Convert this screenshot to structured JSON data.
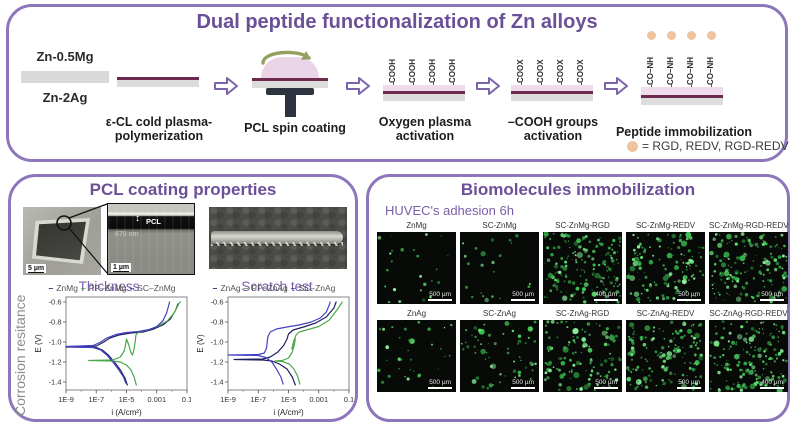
{
  "colors": {
    "purple_accent": "#6b5098",
    "panel_border": "#8d76ba",
    "maroon_layer": "#6e2a4e",
    "pink_layer": "#eedcec",
    "peach_peptide": "#efc39e",
    "gray_substrate": "#d9d9d9",
    "spin_arrow_green": "#93a05f",
    "fluorescence_green": "#4ddb64"
  },
  "top_panel": {
    "title": "Dual peptide functionalization of Zn alloys",
    "sample": {
      "top_label": "Zn-0.5Mg",
      "bottom_label": "Zn-2Ag"
    },
    "step_pp": {
      "caption_line1": "ε-CL cold plasma-",
      "caption_line2": "polymerization"
    },
    "step_spin": {
      "caption": "PCL spin coating"
    },
    "step_oxygen": {
      "caption_line1": "Oxygen plasma",
      "caption_line2": "activation",
      "group": "COOH"
    },
    "step_coox": {
      "caption_line1": "–COOH groups",
      "caption_line2": "activation",
      "group": "COOX"
    },
    "step_peptide": {
      "caption": "Peptide immobilization",
      "group": "CO–NH",
      "legend": "= RGD, REDV, RGD-REDV"
    }
  },
  "pcl_panel": {
    "title": "PCL coating properties",
    "fib_scalebar": "5 µm",
    "inset": {
      "layer_label": "PCL",
      "thickness": "670 nm",
      "scalebar": "1 µm",
      "arrow": "↕"
    },
    "caption_thickness": "Thickness",
    "caption_scratch": "Scratch test",
    "side_label": "Corrosion resitance"
  },
  "chart_data": [
    {
      "type": "line",
      "title": "",
      "xlabel": "i (A/cm²)",
      "ylabel": "E (V)",
      "x_scale": "log",
      "xlim_log": [
        -9,
        -1
      ],
      "ylim": [
        -1.48,
        -0.55
      ],
      "grid": false,
      "legend_position": "top",
      "x_ticks": {
        "values": [
          -9,
          -7,
          -5,
          -3,
          -1
        ],
        "labels": [
          "1E-9",
          "1E-7",
          "1E-5",
          "0.001",
          "0.1"
        ]
      },
      "y_ticks": {
        "values": [
          -0.6,
          -0.8,
          -1.0,
          -1.2,
          -1.4
        ],
        "labels": [
          "-0.6",
          "-0.8",
          "-1.0",
          "-1.2",
          "-1.4"
        ]
      },
      "series": [
        {
          "name": "ZnMg",
          "color": "#1f1f5e",
          "points": [
            [
              -4.95,
              -1.43
            ],
            [
              -5.1,
              -1.36
            ],
            [
              -5.4,
              -1.28
            ],
            [
              -5.8,
              -1.2
            ],
            [
              -6.2,
              -1.13
            ],
            [
              -6.6,
              -1.08
            ],
            [
              -7.0,
              -1.055
            ],
            [
              -9,
              -1.05
            ],
            [
              -7.0,
              -1.04
            ],
            [
              -6.5,
              -1.0
            ],
            [
              -6.1,
              -0.96
            ],
            [
              -5.5,
              -0.93
            ],
            [
              -4.7,
              -0.91
            ],
            [
              -3.9,
              -0.9
            ],
            [
              -3.2,
              -0.87
            ],
            [
              -2.6,
              -0.83
            ],
            [
              -2.1,
              -0.77
            ],
            [
              -1.75,
              -0.68
            ],
            [
              -1.6,
              -0.62
            ]
          ]
        },
        {
          "name": "PP–ZnMg",
          "color": "#4aa84a",
          "points": [
            [
              -4.35,
              -1.43
            ],
            [
              -4.5,
              -1.35
            ],
            [
              -4.7,
              -1.28
            ],
            [
              -5.0,
              -1.23
            ],
            [
              -5.4,
              -1.2
            ],
            [
              -5.9,
              -1.19
            ],
            [
              -7.5,
              -1.185
            ],
            [
              -5.9,
              -1.18
            ],
            [
              -5.4,
              -1.15
            ],
            [
              -5.15,
              -1.09
            ],
            [
              -5.05,
              -1.02
            ],
            [
              -5.0,
              -0.97
            ],
            [
              -4.85,
              -1.03
            ],
            [
              -4.72,
              -1.1
            ],
            [
              -4.6,
              -1.13
            ],
            [
              -4.5,
              -1.07
            ],
            [
              -4.42,
              -0.99
            ],
            [
              -4.38,
              -0.93
            ],
            [
              -4.2,
              -0.9
            ],
            [
              -3.6,
              -0.88
            ],
            [
              -2.9,
              -0.84
            ],
            [
              -2.3,
              -0.79
            ],
            [
              -1.85,
              -0.71
            ],
            [
              -1.55,
              -0.62
            ],
            [
              -1.45,
              -0.6
            ]
          ]
        },
        {
          "name": "SC–ZnMg",
          "color": "#4340c4",
          "points": [
            [
              -5.05,
              -1.41
            ],
            [
              -5.2,
              -1.35
            ],
            [
              -5.5,
              -1.28
            ],
            [
              -5.9,
              -1.2
            ],
            [
              -6.3,
              -1.13
            ],
            [
              -6.7,
              -1.08
            ],
            [
              -7.2,
              -1.055
            ],
            [
              -9,
              -1.045
            ],
            [
              -7.2,
              -1.035
            ],
            [
              -6.7,
              -1.0
            ],
            [
              -6.3,
              -0.96
            ],
            [
              -5.7,
              -0.925
            ],
            [
              -5.0,
              -0.905
            ],
            [
              -4.2,
              -0.895
            ],
            [
              -3.5,
              -0.875
            ],
            [
              -3.0,
              -0.845
            ],
            [
              -2.6,
              -0.79
            ],
            [
              -2.35,
              -0.71
            ],
            [
              -2.2,
              -0.63
            ],
            [
              -2.15,
              -0.6
            ]
          ]
        }
      ]
    },
    {
      "type": "line",
      "title": "",
      "xlabel": "i (A/cm²)",
      "ylabel": "E (V)",
      "x_scale": "log",
      "xlim_log": [
        -9,
        -1
      ],
      "ylim": [
        -1.48,
        -0.55
      ],
      "grid": false,
      "legend_position": "top",
      "x_ticks": {
        "values": [
          -9,
          -7,
          -5,
          -3,
          -1
        ],
        "labels": [
          "1E-9",
          "1E-7",
          "1E-5",
          "0.001",
          "0.1"
        ]
      },
      "y_ticks": {
        "values": [
          -0.6,
          -0.8,
          -1.0,
          -1.2,
          -1.4
        ],
        "labels": [
          "-0.6",
          "-0.8",
          "-1.0",
          "-1.2",
          "-1.4"
        ]
      },
      "series": [
        {
          "name": "ZnAg",
          "color": "#1f1f5e",
          "points": [
            [
              -4.55,
              -1.43
            ],
            [
              -4.75,
              -1.35
            ],
            [
              -5.1,
              -1.27
            ],
            [
              -5.6,
              -1.22
            ],
            [
              -6.1,
              -1.19
            ],
            [
              -6.7,
              -1.18
            ],
            [
              -8.6,
              -1.175
            ],
            [
              -6.7,
              -1.17
            ],
            [
              -6.2,
              -1.15
            ],
            [
              -5.7,
              -1.1
            ],
            [
              -5.3,
              -1.03
            ],
            [
              -5.1,
              -0.97
            ],
            [
              -5.0,
              -0.92
            ],
            [
              -4.7,
              -0.88
            ],
            [
              -4.0,
              -0.85
            ],
            [
              -3.2,
              -0.81
            ],
            [
              -2.5,
              -0.75
            ],
            [
              -2.0,
              -0.66
            ],
            [
              -1.85,
              -0.6
            ]
          ]
        },
        {
          "name": "PP–ZnAg",
          "color": "#4aa84a",
          "points": [
            [
              -4.25,
              -1.42
            ],
            [
              -4.4,
              -1.34
            ],
            [
              -4.65,
              -1.27
            ],
            [
              -4.95,
              -1.22
            ],
            [
              -5.4,
              -1.195
            ],
            [
              -5.9,
              -1.19
            ],
            [
              -5.4,
              -1.185
            ],
            [
              -5.0,
              -1.16
            ],
            [
              -4.75,
              -1.1
            ],
            [
              -4.62,
              -1.03
            ],
            [
              -4.55,
              -0.97
            ],
            [
              -4.68,
              -1.03
            ],
            [
              -4.78,
              -1.07
            ],
            [
              -4.65,
              -0.99
            ],
            [
              -4.5,
              -0.93
            ],
            [
              -4.3,
              -0.9
            ],
            [
              -3.7,
              -0.875
            ],
            [
              -3.0,
              -0.845
            ],
            [
              -2.3,
              -0.78
            ],
            [
              -1.7,
              -0.66
            ],
            [
              -1.45,
              -0.6
            ]
          ]
        },
        {
          "name": "SC–ZnAg",
          "color": "#4340c4",
          "points": [
            [
              -5.35,
              -1.42
            ],
            [
              -5.5,
              -1.35
            ],
            [
              -5.8,
              -1.27
            ],
            [
              -6.1,
              -1.2
            ],
            [
              -6.5,
              -1.155
            ],
            [
              -7.0,
              -1.135
            ],
            [
              -9,
              -1.13
            ],
            [
              -7.0,
              -1.125
            ],
            [
              -6.6,
              -1.11
            ],
            [
              -6.45,
              -1.06
            ],
            [
              -6.4,
              -0.99
            ],
            [
              -6.35,
              -0.94
            ],
            [
              -6.2,
              -0.9
            ],
            [
              -5.8,
              -0.87
            ],
            [
              -5.1,
              -0.85
            ],
            [
              -4.3,
              -0.83
            ],
            [
              -3.5,
              -0.8
            ],
            [
              -2.9,
              -0.76
            ],
            [
              -2.5,
              -0.7
            ],
            [
              -2.3,
              -0.63
            ],
            [
              -2.25,
              -0.6
            ]
          ]
        }
      ]
    }
  ],
  "bio_panel": {
    "title": "Biomolecules immobilization",
    "subtitle": "HUVEC's adhesion 6h",
    "rows": [
      {
        "cells": [
          {
            "label": "ZnMg",
            "scalebar": "500 µm",
            "dot_density": 26
          },
          {
            "label": "SC-ZnMg",
            "scalebar": "500 µm",
            "dot_density": 22
          },
          {
            "label": "SC-ZnMg-RGD",
            "scalebar": "400 µm",
            "dot_density": 170
          },
          {
            "label": "SC-ZnMg-REDV",
            "scalebar": "500 µm",
            "dot_density": 130
          },
          {
            "label": "SC-ZnMg-RGD-REDV",
            "scalebar": "500 µm",
            "dot_density": 160
          }
        ]
      },
      {
        "cells": [
          {
            "label": "ZnAg",
            "scalebar": "500 µm",
            "dot_density": 34
          },
          {
            "label": "SC-ZnAg",
            "scalebar": "500 µm",
            "dot_density": 60
          },
          {
            "label": "SC-ZnAg-RGD",
            "scalebar": "500 µm",
            "dot_density": 130
          },
          {
            "label": "SC-ZnAg-REDV",
            "scalebar": "500 µm",
            "dot_density": 150
          },
          {
            "label": "SC-ZnAg-RGD-REDV",
            "scalebar": "400 µm",
            "dot_density": 170
          }
        ]
      }
    ]
  }
}
